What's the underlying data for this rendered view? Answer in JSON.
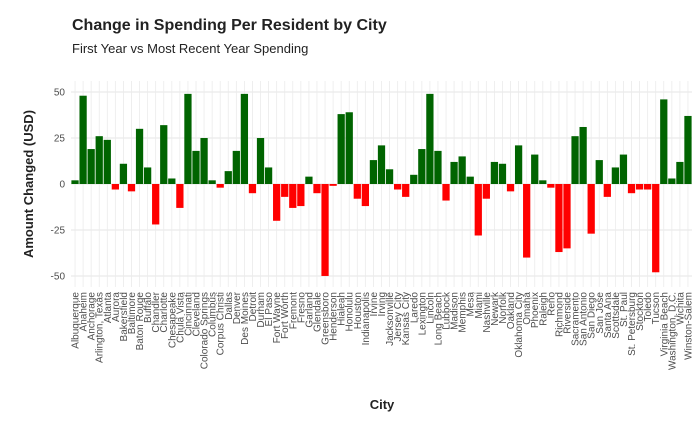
{
  "chart_data": {
    "type": "bar",
    "title": "Change in Spending Per Resident by City",
    "subtitle": "First Year vs Most Recent Year Spending",
    "x_label": "City",
    "y_label": "Amount Changed (USD)",
    "categories": [
      "Albuquerque",
      "Anaheim",
      "Anchorage",
      "Arlington, Texas",
      "Atlanta",
      "Aurora",
      "Bakersfield",
      "Baltimore",
      "Baton Rouge",
      "Buffalo",
      "Chandler",
      "Charlotte",
      "Chesapeake",
      "Chula Vista",
      "Cincinnati",
      "Cleveland",
      "Colorado Springs",
      "Columbus",
      "Corpus Christi",
      "Dallas",
      "Denver",
      "Des Moines",
      "Detroit",
      "Durham",
      "El Paso",
      "Fort Wayne",
      "Fort Worth",
      "Fremont",
      "Fresno",
      "Garland",
      "Glendale",
      "Greensboro",
      "Henderson",
      "Hialeah",
      "Honolulu",
      "Houston",
      "Indianapolis",
      "Irvine",
      "Irving",
      "Jacksonville",
      "Jersey City",
      "Kansas City",
      "Laredo",
      "Lexington",
      "Lincoln",
      "Long Beach",
      "Lubbock",
      "Madison",
      "Memphis",
      "Mesa",
      "Miami",
      "Nashville",
      "Newark",
      "Norfolk",
      "Oakland",
      "Oklahoma City",
      "Omaha",
      "Phoenix",
      "Raleigh",
      "Reno",
      "Richmond",
      "Riverside",
      "Sacramento",
      "San Antonio",
      "San Diego",
      "San Jose",
      "Santa Ana",
      "Scottsdale",
      "St. Paul",
      "St. Petersburg",
      "Stockton",
      "Toledo",
      "Tucson",
      "Virginia Beach",
      "Washington, D.C.",
      "Wichita",
      "Winston-Salem"
    ],
    "values": [
      2,
      48,
      19,
      26,
      24,
      -3,
      11,
      -4,
      30,
      9,
      -22,
      32,
      3,
      -13,
      49,
      18,
      25,
      2,
      -2,
      7,
      18,
      49,
      -5,
      25,
      9,
      -20,
      -7,
      -13,
      -12,
      4,
      -5,
      -50,
      -1,
      38,
      39,
      -8,
      -12,
      13,
      21,
      8,
      -3,
      -7,
      5,
      19,
      49,
      18,
      -9,
      12,
      15,
      4,
      -28,
      -8,
      12,
      11,
      -4,
      21,
      -40,
      16,
      2,
      -2,
      -37,
      -35,
      26,
      31,
      -27,
      13,
      -7,
      9,
      16,
      -5,
      -3,
      -3,
      -48,
      46,
      3,
      12,
      37
    ],
    "positive_color": "#006400",
    "negative_color": "#ff0000",
    "ylim": [
      -56,
      56
    ],
    "yticks": [
      -50,
      -25,
      0,
      25,
      50
    ],
    "grid": true
  }
}
